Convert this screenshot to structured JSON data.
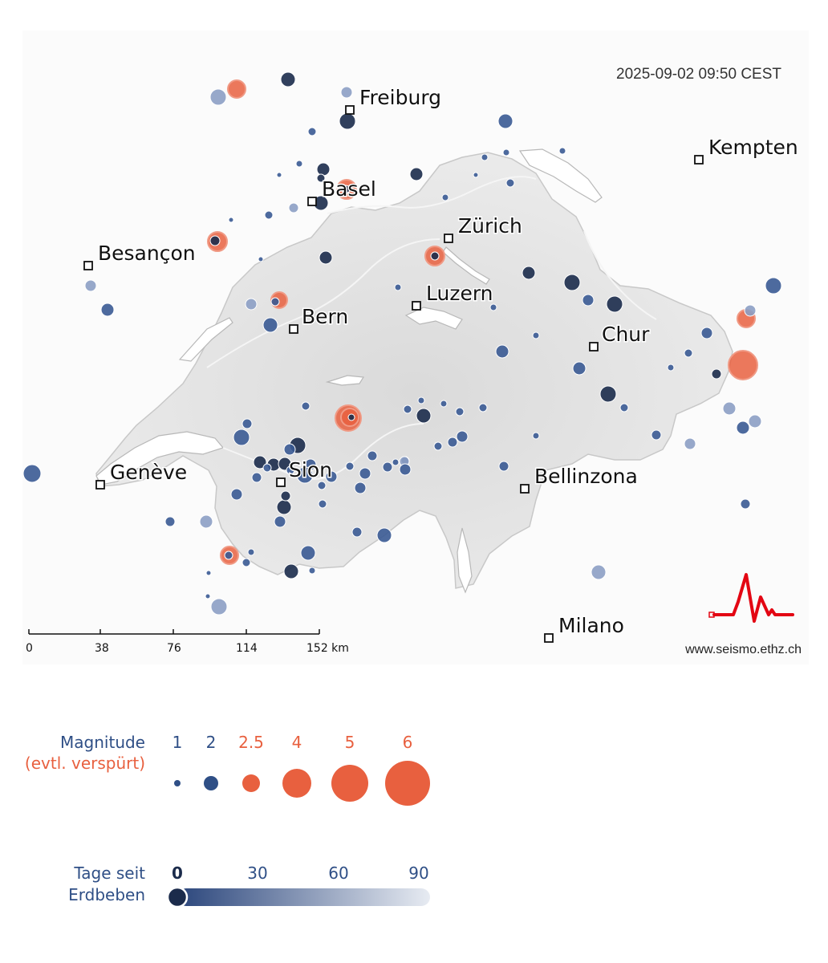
{
  "header": {
    "timestamp": "2025-09-02 09:50 CEST"
  },
  "colors": {
    "recent": "#1b2b4b",
    "older": "#3a5a94",
    "oldest": "#d4dbe7",
    "felt": "#e8603f",
    "map_fill": "#e6e6e6",
    "logo": "#e30613"
  },
  "cities": [
    {
      "name": "Freiburg"
    },
    {
      "name": "Kempten"
    },
    {
      "name": "Basel"
    },
    {
      "name": "Zürich"
    },
    {
      "name": "Besançon"
    },
    {
      "name": "Luzern"
    },
    {
      "name": "Bern"
    },
    {
      "name": "Chur"
    },
    {
      "name": "Genève"
    },
    {
      "name": "Sion"
    },
    {
      "name": "Bellinzona"
    },
    {
      "name": "Milano"
    }
  ],
  "scale": {
    "ticks": [
      "0",
      "38",
      "76",
      "114",
      "152 km"
    ]
  },
  "credit": "www.seismo.ethz.ch",
  "logo_icon": "seismogram-logo-icon",
  "legend": {
    "magnitude_title": "Magnitude",
    "felt_label": "(evtl. verspürt)",
    "magnitudes": [
      {
        "label": "1",
        "felt": false
      },
      {
        "label": "2",
        "felt": false
      },
      {
        "label": "2.5",
        "felt": true
      },
      {
        "label": "4",
        "felt": true
      },
      {
        "label": "5",
        "felt": true
      },
      {
        "label": "6",
        "felt": true
      }
    ],
    "days_title_1": "Tage seit",
    "days_title_2": "Erdbeben",
    "days_ticks": [
      "0",
      "30",
      "60",
      "90"
    ]
  }
}
